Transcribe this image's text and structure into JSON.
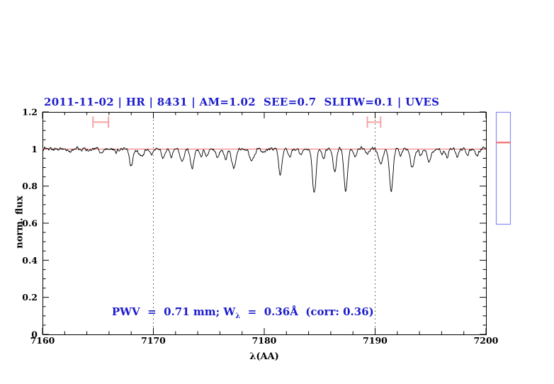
{
  "chart_data": {
    "type": "line",
    "title": "2011-11-02 | HR | 8431 | AM=1.02  SEE=0.7  SLITW=0.1 | UVES",
    "title_color": "#1c1ccd",
    "xlabel": "λ(AA)",
    "ylabel": "norm. flux",
    "xlim": [
      7160,
      7200
    ],
    "ylim": [
      0,
      1.2
    ],
    "xticks": [
      7160,
      7170,
      7180,
      7190,
      7200
    ],
    "xtick_labels": [
      "7160",
      "7170",
      "7180",
      "7190",
      "7200"
    ],
    "x_minor_step": 2,
    "yticks": [
      0,
      0.2,
      0.4,
      0.6,
      0.8,
      1,
      1.2
    ],
    "ytick_labels": [
      "0",
      "0.2",
      "0.4",
      "0.6",
      "0.8",
      "1",
      "1.2"
    ],
    "y_minor_step": 0.05,
    "grid": "off",
    "series": [
      {
        "name": "observed-spectrum",
        "color": "#000000",
        "model": {
          "continuum": 1.0,
          "noise_rms": 0.007,
          "seed": 42,
          "sample_step": 0.04,
          "absorption_lines": [
            {
              "wl": 7162.5,
              "depth": 0.02,
              "sigma": 0.15
            },
            {
              "wl": 7164.2,
              "depth": 0.015,
              "sigma": 0.12
            },
            {
              "wl": 7165.3,
              "depth": 0.02,
              "sigma": 0.15
            },
            {
              "wl": 7166.6,
              "depth": 0.02,
              "sigma": 0.12
            },
            {
              "wl": 7168.0,
              "depth": 0.09,
              "sigma": 0.16
            },
            {
              "wl": 7168.9,
              "depth": 0.035,
              "sigma": 0.25
            },
            {
              "wl": 7169.8,
              "depth": 0.03,
              "sigma": 0.15
            },
            {
              "wl": 7170.9,
              "depth": 0.055,
              "sigma": 0.14
            },
            {
              "wl": 7171.6,
              "depth": 0.045,
              "sigma": 0.12
            },
            {
              "wl": 7172.6,
              "depth": 0.075,
              "sigma": 0.15
            },
            {
              "wl": 7173.5,
              "depth": 0.1,
              "sigma": 0.17
            },
            {
              "wl": 7174.3,
              "depth": 0.04,
              "sigma": 0.12
            },
            {
              "wl": 7174.8,
              "depth": 0.045,
              "sigma": 0.12
            },
            {
              "wl": 7175.8,
              "depth": 0.045,
              "sigma": 0.14
            },
            {
              "wl": 7176.5,
              "depth": 0.06,
              "sigma": 0.13
            },
            {
              "wl": 7177.25,
              "depth": 0.105,
              "sigma": 0.18
            },
            {
              "wl": 7178.9,
              "depth": 0.06,
              "sigma": 0.22
            },
            {
              "wl": 7179.9,
              "depth": 0.025,
              "sigma": 0.12
            },
            {
              "wl": 7181.45,
              "depth": 0.145,
              "sigma": 0.14
            },
            {
              "wl": 7182.3,
              "depth": 0.05,
              "sigma": 0.13
            },
            {
              "wl": 7183.3,
              "depth": 0.03,
              "sigma": 0.12
            },
            {
              "wl": 7184.5,
              "depth": 0.24,
              "sigma": 0.16
            },
            {
              "wl": 7185.35,
              "depth": 0.06,
              "sigma": 0.12
            },
            {
              "wl": 7186.35,
              "depth": 0.125,
              "sigma": 0.15
            },
            {
              "wl": 7187.35,
              "depth": 0.225,
              "sigma": 0.16
            },
            {
              "wl": 7188.2,
              "depth": 0.045,
              "sigma": 0.12
            },
            {
              "wl": 7189.3,
              "depth": 0.03,
              "sigma": 0.12
            },
            {
              "wl": 7190.5,
              "depth": 0.075,
              "sigma": 0.18
            },
            {
              "wl": 7191.45,
              "depth": 0.23,
              "sigma": 0.16
            },
            {
              "wl": 7192.3,
              "depth": 0.04,
              "sigma": 0.12
            },
            {
              "wl": 7193.35,
              "depth": 0.1,
              "sigma": 0.18
            },
            {
              "wl": 7194.1,
              "depth": 0.035,
              "sigma": 0.12
            },
            {
              "wl": 7194.85,
              "depth": 0.075,
              "sigma": 0.15
            },
            {
              "wl": 7196.0,
              "depth": 0.03,
              "sigma": 0.12
            },
            {
              "wl": 7196.5,
              "depth": 0.045,
              "sigma": 0.13
            },
            {
              "wl": 7197.4,
              "depth": 0.04,
              "sigma": 0.13
            },
            {
              "wl": 7198.3,
              "depth": 0.035,
              "sigma": 0.12
            },
            {
              "wl": 7199.2,
              "depth": 0.04,
              "sigma": 0.14
            }
          ]
        }
      },
      {
        "name": "continuum-fit",
        "color": "#f26c6c",
        "y": 1.0
      }
    ],
    "reference_lines": {
      "vertical_dotted_x": [
        7170,
        7190
      ],
      "color": "#444444"
    },
    "markers": [
      {
        "type": "h-errorbar",
        "x": 7165.25,
        "xerr": 0.7,
        "y": 1.145,
        "color": "#f5a3a3"
      },
      {
        "type": "h-errorbar",
        "x": 7189.9,
        "xerr": 0.6,
        "y": 1.145,
        "color": "#f5a3a3"
      }
    ],
    "annotation": {
      "pre": "PWV  =  0.71 mm; W",
      "sub": "λ",
      "post": "  =  0.36Å  (corr: 0.36)",
      "color": "#1c1ccd"
    },
    "side_gauge": {
      "border_color": "#8a8af5",
      "line_color": "#f47c7c",
      "line_fraction_from_top": 0.27
    },
    "axis_color": "#000000"
  }
}
